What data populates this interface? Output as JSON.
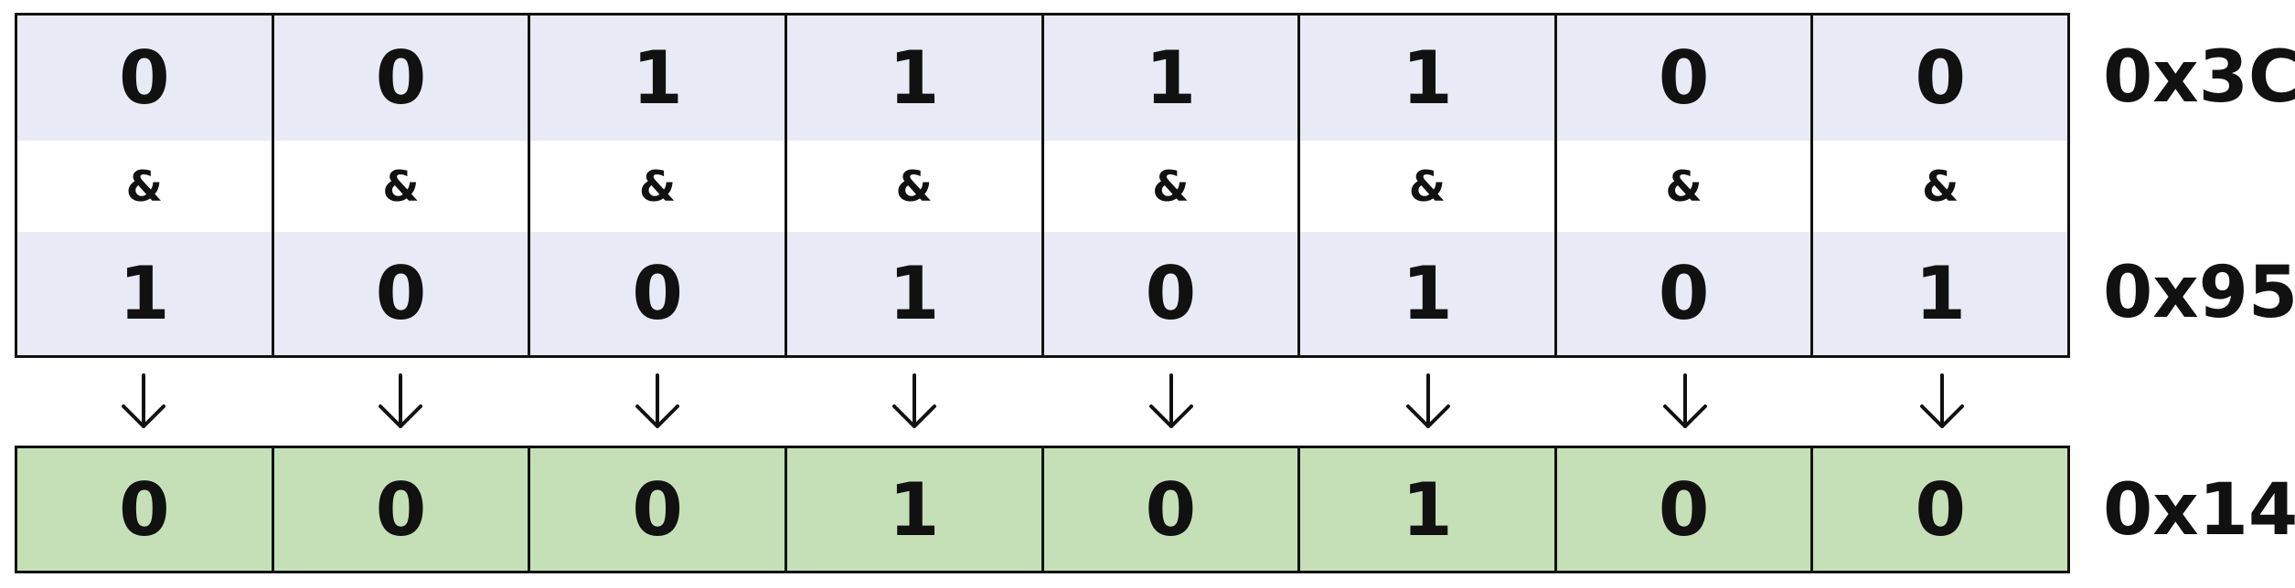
{
  "operand_a": {
    "bits": [
      "0",
      "0",
      "1",
      "1",
      "1",
      "1",
      "0",
      "0"
    ],
    "hex": "0x3C"
  },
  "operator": {
    "symbols": [
      "&",
      "&",
      "&",
      "&",
      "&",
      "&",
      "&",
      "&"
    ]
  },
  "operand_b": {
    "bits": [
      "1",
      "0",
      "0",
      "1",
      "0",
      "1",
      "0",
      "1"
    ],
    "hex": "0x95"
  },
  "result": {
    "bits": [
      "0",
      "0",
      "0",
      "1",
      "0",
      "1",
      "0",
      "0"
    ],
    "hex": "0x14"
  },
  "colors": {
    "operand_fill": "#e8ebf5",
    "result_fill": "#c5e0b6",
    "border": "#111111"
  },
  "icons": {
    "flow_arrow": "down-arrow-icon"
  }
}
